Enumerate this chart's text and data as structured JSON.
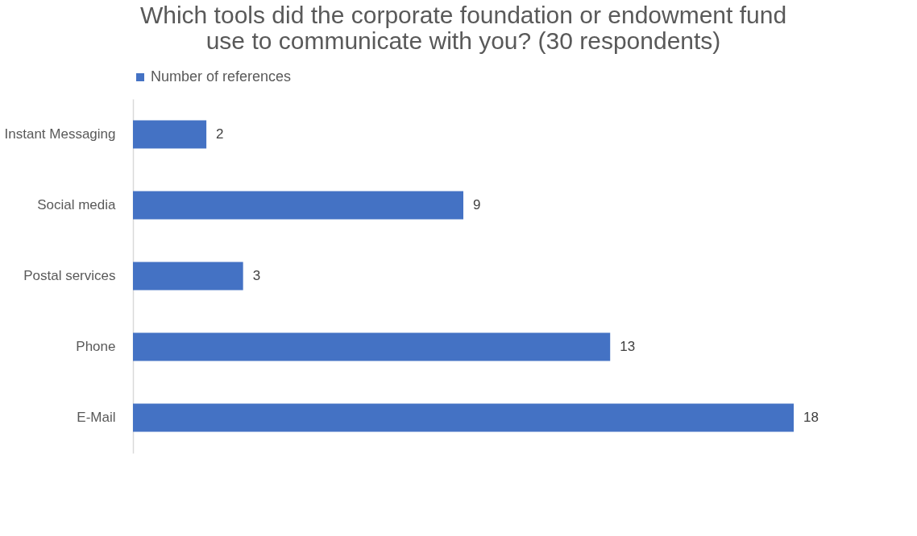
{
  "chart_data": {
    "type": "bar",
    "orientation": "horizontal",
    "title": "Which tools did the corporate foundation or endowment fund use to communicate with you? (30 respondents)",
    "categories": [
      "Instant Messaging",
      "Social media",
      "Postal services",
      "Phone",
      "E-Mail"
    ],
    "series": [
      {
        "name": "Number of references",
        "color": "#4472c4",
        "values": [
          2,
          9,
          3,
          13,
          18
        ]
      }
    ],
    "data_labels": true,
    "legend": "top"
  }
}
